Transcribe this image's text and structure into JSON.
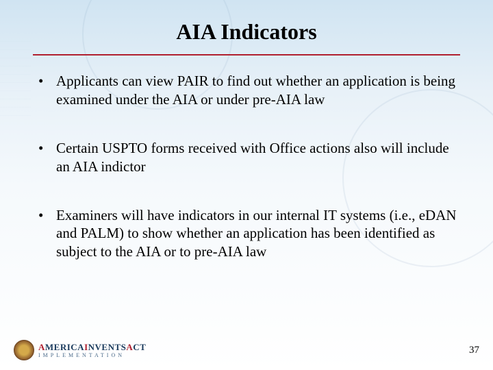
{
  "slide": {
    "title": "AIA Indicators",
    "divider_color": "#b01e2e",
    "bullets": [
      "Applicants can view PAIR to find out whether an application is being examined under the AIA or under pre-AIA law",
      "Certain USPTO forms received with Office actions also will include an AIA indictor",
      "Examiners will have indicators in our internal IT systems (i.e., eDAN and PALM) to show whether an application has been identified as subject to the AIA or to pre-AIA law"
    ]
  },
  "footer": {
    "logo_red1": "A",
    "logo_navy1": "MERICA",
    "logo_red2": "I",
    "logo_navy2": "NVENTS",
    "logo_red3": "A",
    "logo_navy3": "CT",
    "logo_sub": "IMPLEMENTATION",
    "page_number": "37"
  },
  "colors": {
    "accent_red": "#b01e2e",
    "accent_navy": "#1a3a5c",
    "bg_top": "#d0e4f2"
  }
}
